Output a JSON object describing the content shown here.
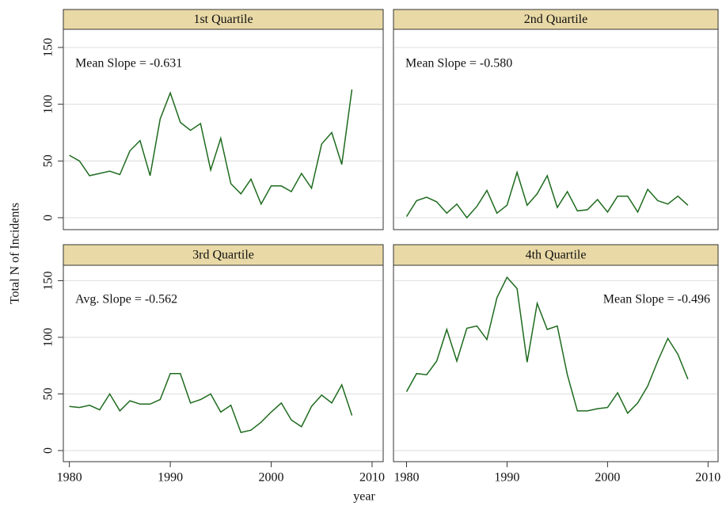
{
  "ylabel": "Total N of Incidents",
  "xlabel": "year",
  "chart_data": [
    {
      "type": "line",
      "title": "1st Quartile",
      "annotation": "Mean Slope = -0.631",
      "annotation_corner": "top-left",
      "x": [
        1980,
        1981,
        1982,
        1983,
        1984,
        1985,
        1986,
        1987,
        1988,
        1989,
        1990,
        1991,
        1992,
        1993,
        1994,
        1995,
        1996,
        1997,
        1998,
        1999,
        2000,
        2001,
        2002,
        2003,
        2004,
        2005,
        2006,
        2007,
        2008
      ],
      "values": [
        55,
        50,
        37,
        39,
        41,
        38,
        59,
        68,
        37,
        87,
        110,
        84,
        77,
        83,
        42,
        70,
        30,
        21,
        34,
        12,
        28,
        28,
        23,
        39,
        26,
        65,
        75,
        47,
        113
      ],
      "color": "#1e6b1e",
      "xlim": [
        1979.4,
        2011.1
      ],
      "ylim": [
        -10.5,
        166
      ],
      "yticks": [
        0,
        50,
        100,
        150
      ],
      "grid": true
    },
    {
      "type": "line",
      "title": "2nd Quartile",
      "annotation": "Mean Slope = -0.580",
      "annotation_corner": "top-left",
      "x": [
        1980,
        1981,
        1982,
        1983,
        1984,
        1985,
        1986,
        1987,
        1988,
        1989,
        1990,
        1991,
        1992,
        1993,
        1994,
        1995,
        1996,
        1997,
        1998,
        1999,
        2000,
        2001,
        2002,
        2003,
        2004,
        2005,
        2006,
        2007,
        2008
      ],
      "values": [
        1,
        15,
        18,
        14,
        4,
        12,
        0,
        10,
        24,
        4,
        11,
        40,
        11,
        21,
        37,
        9,
        23,
        6,
        7,
        16,
        5,
        19,
        19,
        5,
        25,
        15,
        12,
        19,
        11
      ],
      "color": "#1e6b1e",
      "xlim": [
        1978.7,
        2011.0
      ],
      "ylim": [
        -10.5,
        166
      ],
      "yticks": [
        0,
        50,
        100,
        150
      ],
      "grid": true
    },
    {
      "type": "line",
      "title": "3rd Quartile",
      "annotation": "Avg. Slope = -0.562",
      "annotation_corner": "top-left",
      "x": [
        1980,
        1981,
        1982,
        1983,
        1984,
        1985,
        1986,
        1987,
        1988,
        1989,
        1990,
        1991,
        1992,
        1993,
        1994,
        1995,
        1996,
        1997,
        1998,
        1999,
        2000,
        2001,
        2002,
        2003,
        2004,
        2005,
        2006,
        2007,
        2008
      ],
      "values": [
        39,
        38,
        40,
        36,
        50,
        35,
        44,
        41,
        41,
        45,
        68,
        68,
        42,
        45,
        50,
        34,
        40,
        16,
        18,
        25,
        34,
        42,
        27,
        21,
        39,
        49,
        42,
        58,
        31
      ],
      "color": "#1e6b1e",
      "xlim": [
        1979.4,
        2011.1
      ],
      "ylim": [
        -9.8,
        163.6
      ],
      "yticks": [
        0,
        50,
        100,
        150
      ],
      "xticks": [
        1980,
        1990,
        2000,
        2010
      ],
      "grid": true
    },
    {
      "type": "line",
      "title": "4th Quartile",
      "annotation": "Mean Slope = -0.496",
      "annotation_corner": "top-right",
      "x": [
        1980,
        1981,
        1982,
        1983,
        1984,
        1985,
        1986,
        1987,
        1988,
        1989,
        1990,
        1991,
        1992,
        1993,
        1994,
        1995,
        1996,
        1997,
        1998,
        1999,
        2000,
        2001,
        2002,
        2003,
        2004,
        2005,
        2006,
        2007,
        2008
      ],
      "values": [
        52,
        68,
        67,
        79,
        107,
        79,
        108,
        110,
        98,
        135,
        153,
        143,
        78,
        130,
        107,
        110,
        67,
        35,
        35,
        37,
        38,
        51,
        33,
        42,
        57,
        79,
        99,
        85,
        63
      ],
      "color": "#1e6b1e",
      "xlim": [
        1978.7,
        2011.0
      ],
      "ylim": [
        -9.8,
        163.6
      ],
      "yticks": [
        0,
        50,
        100,
        150
      ],
      "xticks": [
        1980,
        1990,
        2000,
        2010
      ],
      "grid": true
    }
  ]
}
